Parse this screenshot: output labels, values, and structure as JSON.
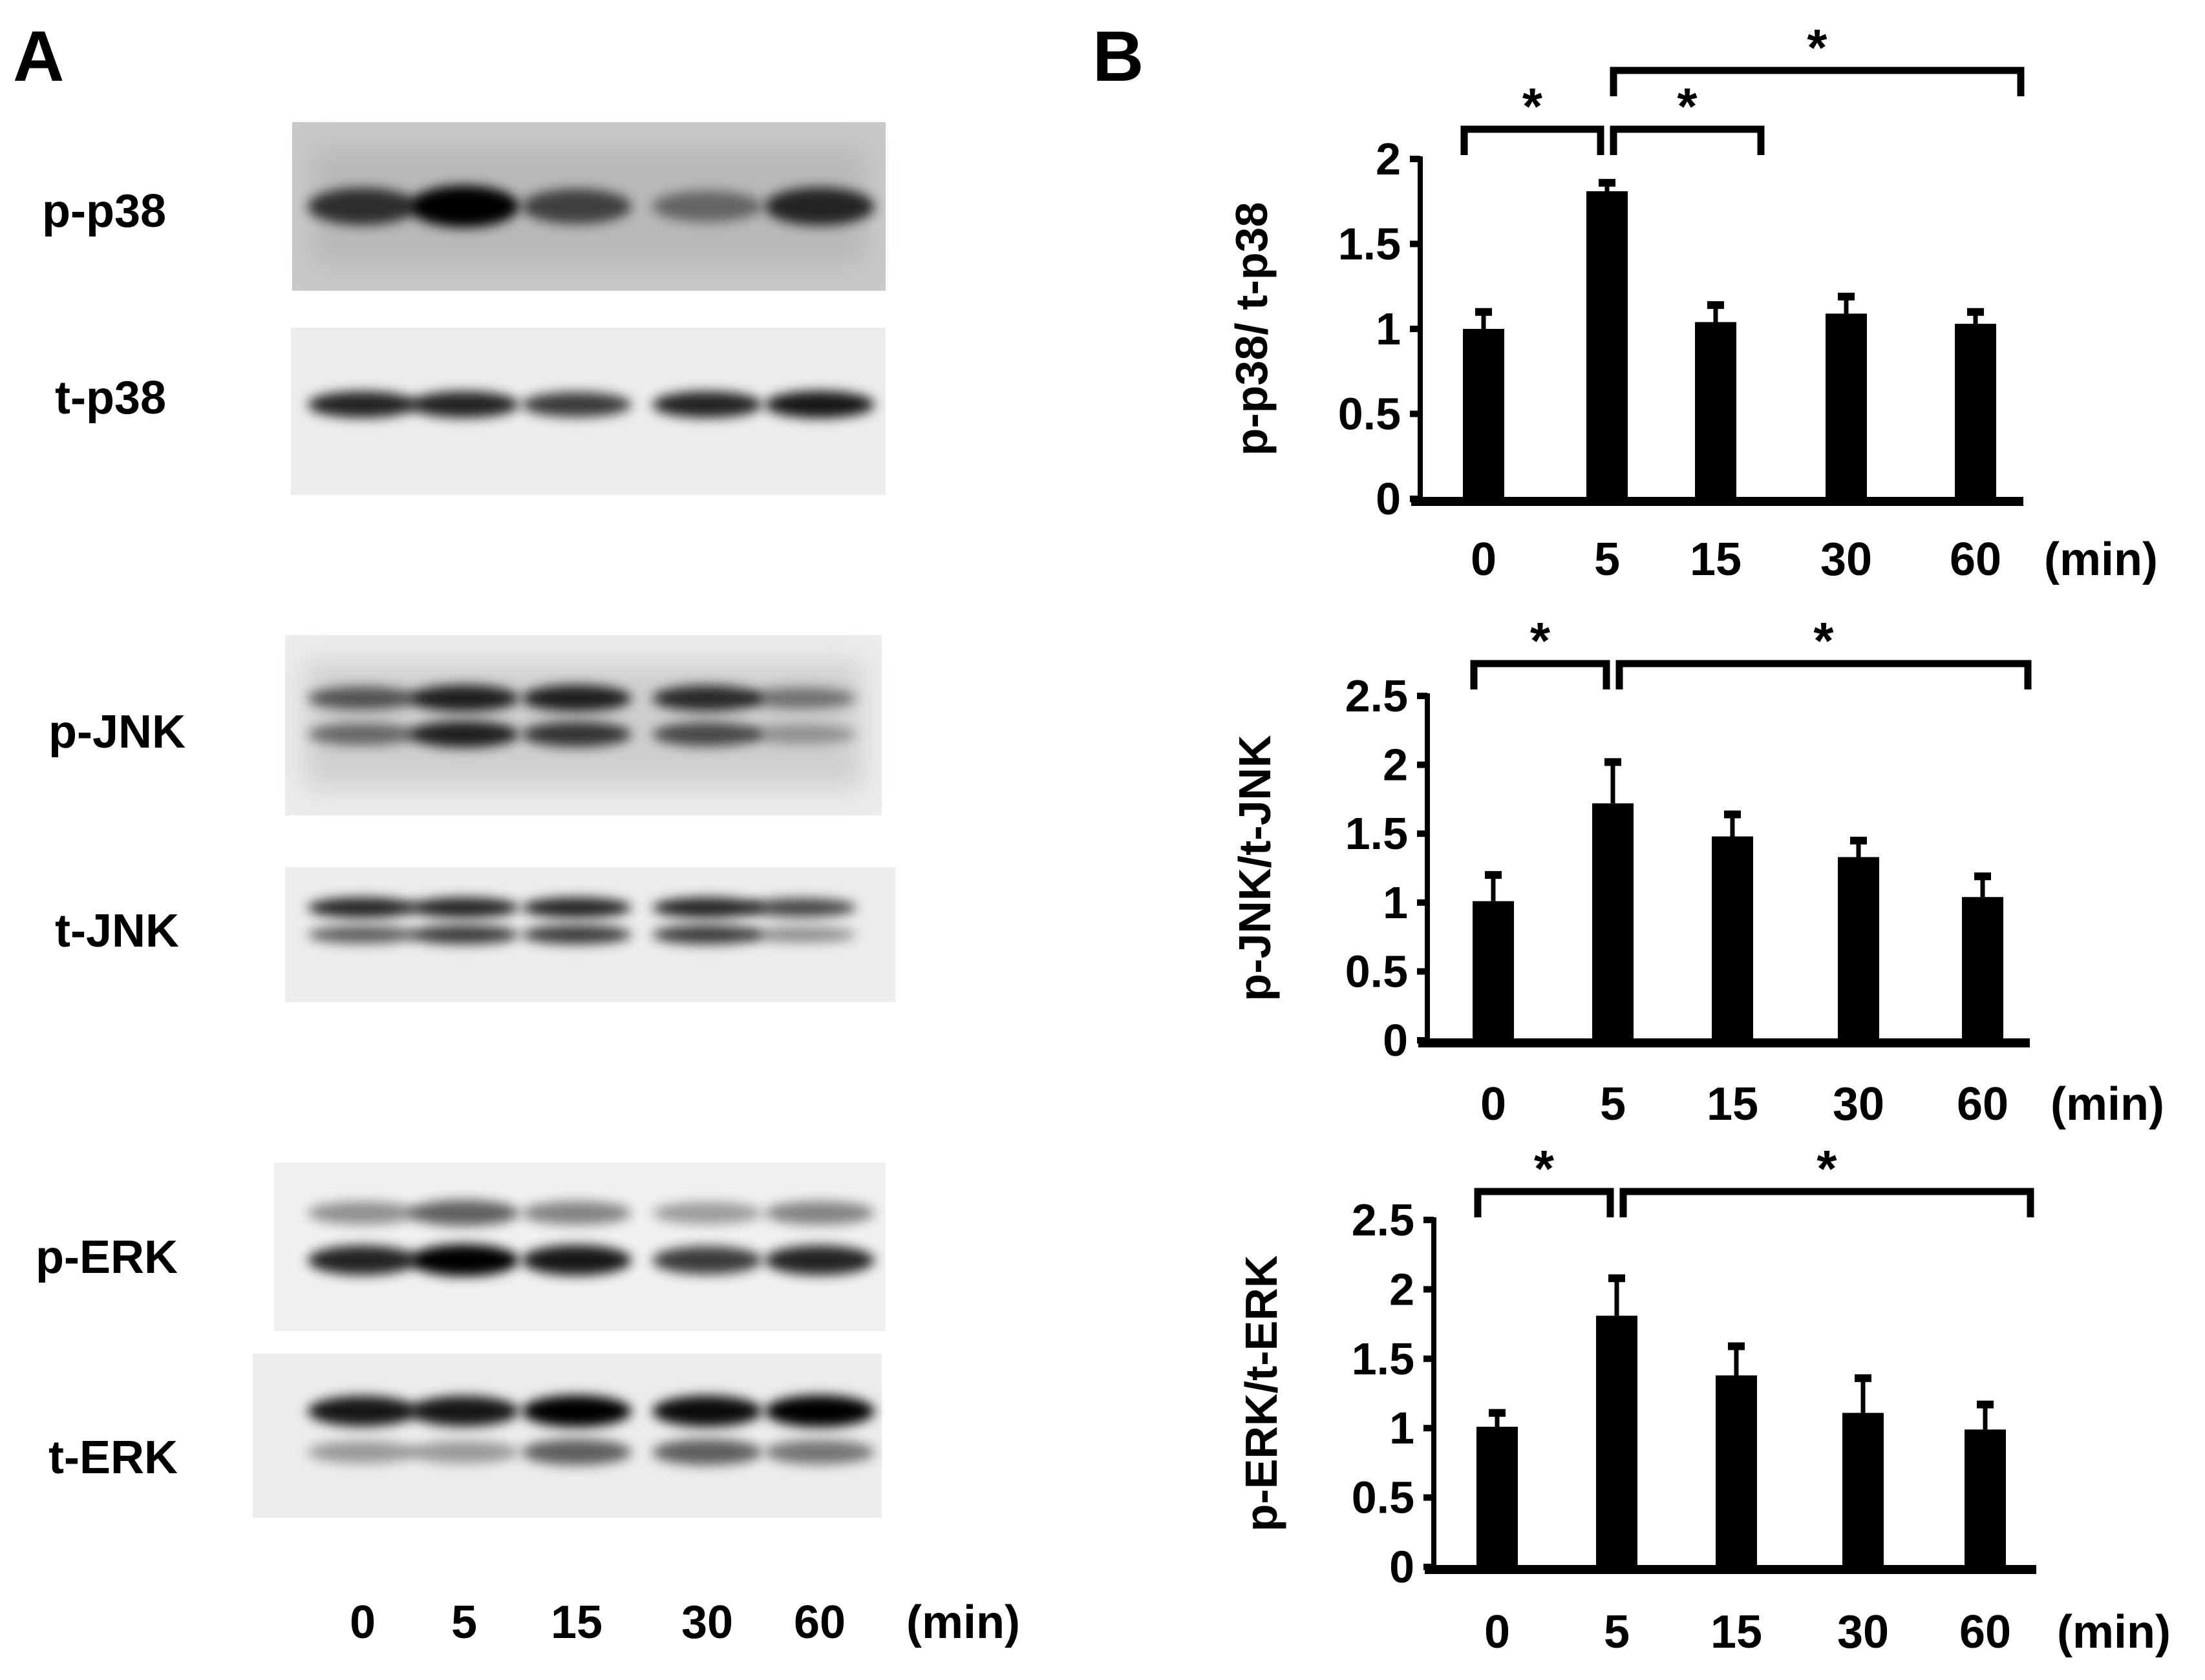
{
  "panel_a": {
    "letter": "A",
    "blots": [
      {
        "label": "p-p38"
      },
      {
        "label": "t-p38"
      },
      {
        "label": "p-JNK"
      },
      {
        "label": "t-JNK"
      },
      {
        "label": "p-ERK"
      },
      {
        "label": "t-ERK"
      }
    ],
    "lanes": [
      "0",
      "5",
      "15",
      "30",
      "60"
    ],
    "unit": "(min)"
  },
  "panel_b": {
    "letter": "B"
  },
  "chart_data": [
    {
      "type": "bar",
      "ylabel": "p-p38/ t-p38",
      "categories": [
        "0",
        "5",
        "15",
        "30",
        "60"
      ],
      "unit": "(min)",
      "values": [
        1.0,
        1.81,
        1.04,
        1.09,
        1.03
      ],
      "errors": [
        0.1,
        0.05,
        0.1,
        0.1,
        0.07
      ],
      "ylim": [
        0,
        2
      ],
      "yticks": [
        "0",
        "0.5",
        "1",
        "1.5",
        "2"
      ],
      "significance": [
        {
          "from": "0",
          "to": "5",
          "label": "*"
        },
        {
          "from": "5",
          "to": "15",
          "label": "*"
        },
        {
          "from": "5",
          "to": "60",
          "label": "*"
        }
      ],
      "color": "#000000"
    },
    {
      "type": "bar",
      "ylabel": "p-JNK/t-JNK",
      "categories": [
        "0",
        "5",
        "15",
        "30",
        "60"
      ],
      "unit": "(min)",
      "values": [
        1.01,
        1.72,
        1.48,
        1.33,
        1.04
      ],
      "errors": [
        0.19,
        0.3,
        0.16,
        0.12,
        0.15
      ],
      "ylim": [
        0,
        2.5
      ],
      "yticks": [
        "0",
        "0.5",
        "1",
        "1.5",
        "2",
        "2.5"
      ],
      "significance": [
        {
          "from": "0",
          "to": "5",
          "label": "*"
        },
        {
          "from": "5",
          "to": "60",
          "label": "*"
        }
      ],
      "color": "#000000"
    },
    {
      "type": "bar",
      "ylabel": "p-ERK/t-ERK",
      "categories": [
        "0",
        "5",
        "15",
        "30",
        "60"
      ],
      "unit": "(min)",
      "values": [
        1.01,
        1.81,
        1.38,
        1.11,
        0.99
      ],
      "errors": [
        0.1,
        0.27,
        0.21,
        0.25,
        0.18
      ],
      "ylim": [
        0,
        2.5
      ],
      "yticks": [
        "0",
        "0.5",
        "1",
        "1.5",
        "2",
        "2.5"
      ],
      "significance": [
        {
          "from": "0",
          "to": "5",
          "label": "*"
        },
        {
          "from": "5",
          "to": "60",
          "label": "*"
        }
      ],
      "color": "#000000"
    }
  ]
}
